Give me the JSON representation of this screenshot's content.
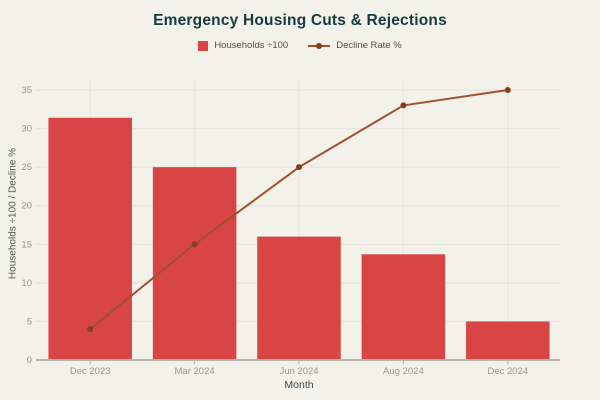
{
  "title": "Emergency Housing Cuts & Rejections",
  "legend": {
    "items": [
      {
        "label": "Households ÷100",
        "marker": "square"
      },
      {
        "label": "Decline Rate %",
        "marker": "line-dot"
      }
    ]
  },
  "chart_data": {
    "type": "combo-bar-line",
    "title": "Emergency Housing Cuts & Rejections",
    "categories": [
      "Dec 2023",
      "Mar 2024",
      "Jun 2024",
      "Aug 2024",
      "Dec 2024"
    ],
    "series": [
      {
        "name": "Households ÷100",
        "type": "bar",
        "color": "#d94545",
        "values": [
          31.4,
          25,
          16,
          13.7,
          5
        ]
      },
      {
        "name": "Decline Rate %",
        "type": "line",
        "color": "#a0522d",
        "marker_color": "#8a3b20",
        "values": [
          4,
          15,
          25,
          33,
          35
        ]
      }
    ],
    "xlabel": "Month",
    "ylabel": "Households ÷100 / Decline %",
    "ylim": [
      0,
      35
    ],
    "yticks": [
      0,
      5,
      10,
      15,
      20,
      25,
      30,
      35
    ],
    "grid": true,
    "legend_position": "top"
  },
  "colors": {
    "background": "#f2f1ea",
    "title": "#163a40",
    "bar": "#d94545",
    "line": "#a0522d",
    "line_marker": "#8a3b20",
    "tick_label": "#9a968b",
    "axis_label": "#50584f",
    "xaxis_title": "#3d4a4e",
    "legend_text": "#5e4c3f",
    "gridline": "#e4e1d8",
    "gridline_vertical": "#e9e7df",
    "axis_line": "#b8b5ab"
  }
}
